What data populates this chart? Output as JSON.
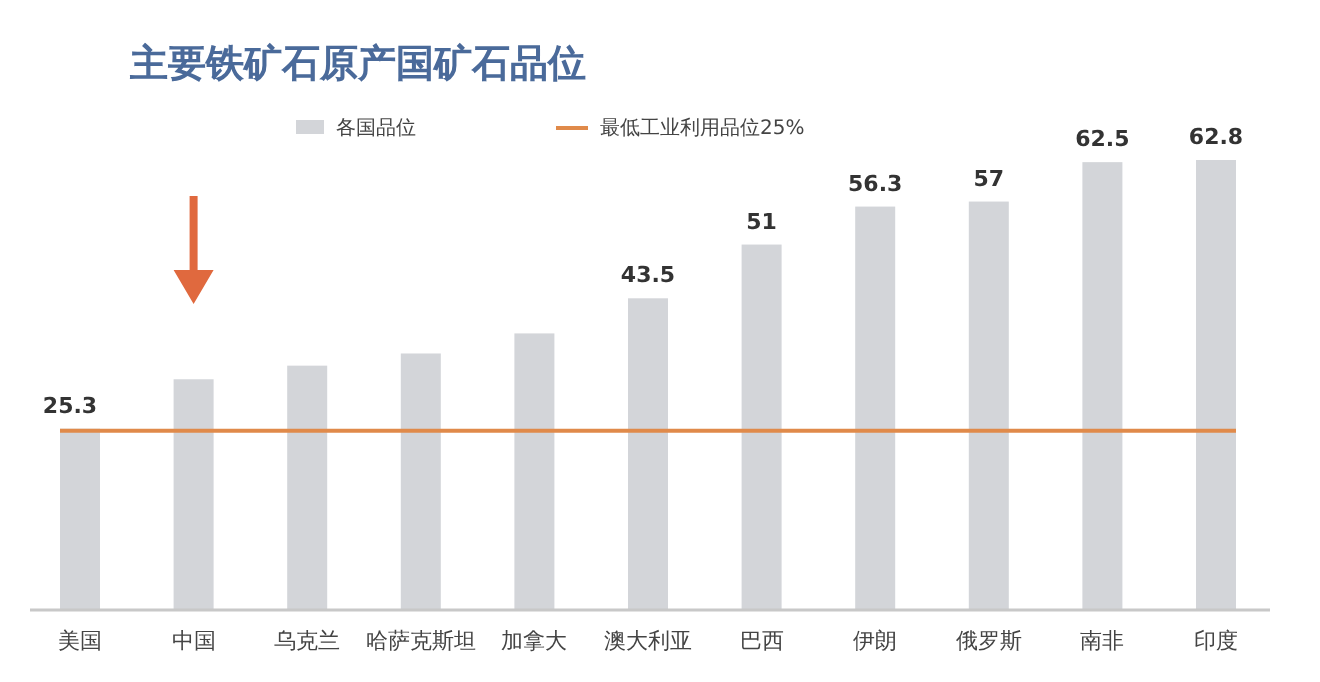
{
  "chart_data": {
    "type": "bar",
    "title": "主要铁矿石原产国矿石品位",
    "categories": [
      "美国",
      "中国",
      "乌克兰",
      "哈萨克斯坦",
      "加拿大",
      "澳大利亚",
      "巴西",
      "伊朗",
      "俄罗斯",
      "南非",
      "印度"
    ],
    "series": [
      {
        "name": "各国品位",
        "color": "#d3d5d9",
        "values": [
          25.3,
          32.2,
          34.1,
          35.8,
          38.6,
          43.5,
          51,
          56.3,
          57,
          62.5,
          62.8
        ],
        "value_labels": [
          "25.3",
          null,
          null,
          null,
          null,
          "43.5",
          "51",
          "56.3",
          "57",
          "62.5",
          "62.8"
        ]
      }
    ],
    "ref_lines": [
      {
        "axis": "y",
        "value": 25,
        "label": "最低工业利用品位25%",
        "color": "#e08a4a"
      }
    ],
    "legend": "top"
  }
}
